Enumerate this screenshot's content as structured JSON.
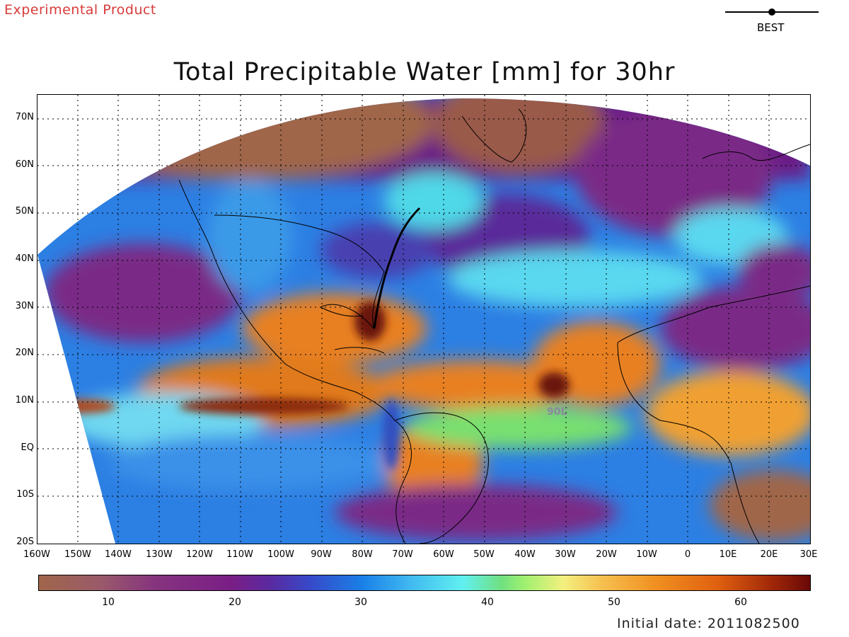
{
  "header": {
    "product_label": "Experimental Product",
    "legend_label": "BEST",
    "title": "Total Precipitable Water [mm] for 30hr"
  },
  "map": {
    "lat_labels": [
      "70N",
      "60N",
      "50N",
      "40N",
      "30N",
      "20N",
      "10N",
      "EQ",
      "10S",
      "20S"
    ],
    "lon_labels": [
      "160W",
      "150W",
      "140W",
      "130W",
      "120W",
      "110W",
      "100W",
      "90W",
      "80W",
      "70W",
      "60W",
      "50W",
      "40W",
      "30W",
      "20W",
      "10W",
      "0",
      "10E",
      "20E",
      "30E"
    ],
    "storm_labels": [
      "90L"
    ],
    "colors": {
      "dry_brown": "#a0664a",
      "purple": "#7a2a86",
      "blue": "#2a7fe0",
      "cyan": "#55e0f0",
      "green": "#78e070",
      "yellow": "#f3e060",
      "orange": "#e88020",
      "dark_red": "#6a1408"
    }
  },
  "colorbar": {
    "tick_labels": [
      "10",
      "20",
      "30",
      "40",
      "50",
      "60"
    ],
    "units": "mm"
  },
  "footer": {
    "initial_date": "Initial date: 2011082500"
  }
}
